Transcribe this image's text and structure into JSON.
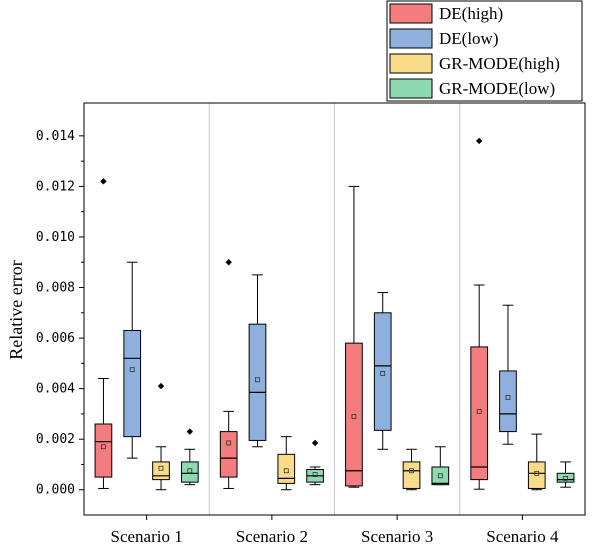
{
  "chart_data": {
    "type": "box",
    "title": "",
    "xlabel": "",
    "ylabel": "Relative error",
    "ylim": [
      -0.001,
      0.0153
    ],
    "yticks": [
      0.0,
      0.002,
      0.004,
      0.006,
      0.008,
      0.01,
      0.012,
      0.014
    ],
    "ytick_labels": [
      "0.000",
      "0.002",
      "0.004",
      "0.006",
      "0.008",
      "0.010",
      "0.012",
      "0.014"
    ],
    "categories": [
      "Scenario 1",
      "Scenario 2",
      "Scenario 3",
      "Scenario 4"
    ],
    "legend_position": "top-right",
    "series": [
      {
        "name": "DE(high)",
        "color": "#f27c7e",
        "boxes": [
          {
            "whisker_low": 5e-05,
            "q1": 0.0005,
            "median": 0.0019,
            "q3": 0.0026,
            "whisker_high": 0.0044,
            "mean": 0.0017,
            "outliers": [
              0.0122
            ]
          },
          {
            "whisker_low": 5e-05,
            "q1": 0.0005,
            "median": 0.00125,
            "q3": 0.0023,
            "whisker_high": 0.0031,
            "mean": 0.00185,
            "outliers": [
              0.009
            ]
          },
          {
            "whisker_low": 0.0001,
            "q1": 0.00015,
            "median": 0.00075,
            "q3": 0.0058,
            "whisker_high": 0.012,
            "mean": 0.0029,
            "outliers": []
          },
          {
            "whisker_low": 2e-05,
            "q1": 0.0004,
            "median": 0.0009,
            "q3": 0.00565,
            "whisker_high": 0.0081,
            "mean": 0.0031,
            "outliers": [
              0.0138
            ]
          }
        ]
      },
      {
        "name": "DE(low)",
        "color": "#8fb0dc",
        "boxes": [
          {
            "whisker_low": 0.00125,
            "q1": 0.0021,
            "median": 0.0052,
            "q3": 0.0063,
            "whisker_high": 0.009,
            "mean": 0.00475,
            "outliers": []
          },
          {
            "whisker_low": 0.0017,
            "q1": 0.00195,
            "median": 0.00385,
            "q3": 0.00655,
            "whisker_high": 0.0085,
            "mean": 0.00435,
            "outliers": []
          },
          {
            "whisker_low": 0.0016,
            "q1": 0.00235,
            "median": 0.0049,
            "q3": 0.007,
            "whisker_high": 0.0078,
            "mean": 0.0046,
            "outliers": []
          },
          {
            "whisker_low": 0.0018,
            "q1": 0.0023,
            "median": 0.003,
            "q3": 0.0047,
            "whisker_high": 0.0073,
            "mean": 0.00365,
            "outliers": []
          }
        ]
      },
      {
        "name": "GR-MODE(high)",
        "color": "#f9dc8a",
        "boxes": [
          {
            "whisker_low": 0.0,
            "q1": 0.0004,
            "median": 0.00055,
            "q3": 0.0011,
            "whisker_high": 0.0017,
            "mean": 0.00085,
            "outliers": [
              0.0041
            ]
          },
          {
            "whisker_low": 0.0,
            "q1": 0.00025,
            "median": 0.00045,
            "q3": 0.0014,
            "whisker_high": 0.0021,
            "mean": 0.00075,
            "outliers": []
          },
          {
            "whisker_low": 0.0,
            "q1": 5e-05,
            "median": 0.00075,
            "q3": 0.0011,
            "whisker_high": 0.0016,
            "mean": 0.00075,
            "outliers": []
          },
          {
            "whisker_low": 0.0,
            "q1": 5e-05,
            "median": 0.00065,
            "q3": 0.0011,
            "whisker_high": 0.0022,
            "mean": 0.00065,
            "outliers": []
          }
        ]
      },
      {
        "name": "GR-MODE(low)",
        "color": "#8ed9b0",
        "boxes": [
          {
            "whisker_low": 0.0002,
            "q1": 0.0003,
            "median": 0.00065,
            "q3": 0.0011,
            "whisker_high": 0.0016,
            "mean": 0.00075,
            "outliers": [
              0.0023
            ]
          },
          {
            "whisker_low": 0.0002,
            "q1": 0.0003,
            "median": 0.00055,
            "q3": 0.0008,
            "whisker_high": 0.0009,
            "mean": 0.0006,
            "outliers": [
              0.00185
            ]
          },
          {
            "whisker_low": 0.0002,
            "q1": 0.0002,
            "median": 0.00025,
            "q3": 0.0009,
            "whisker_high": 0.0017,
            "mean": 0.00055,
            "outliers": []
          },
          {
            "whisker_low": 0.0001,
            "q1": 0.0003,
            "median": 0.0004,
            "q3": 0.00065,
            "whisker_high": 0.0011,
            "mean": 0.00045,
            "outliers": []
          }
        ]
      }
    ]
  }
}
